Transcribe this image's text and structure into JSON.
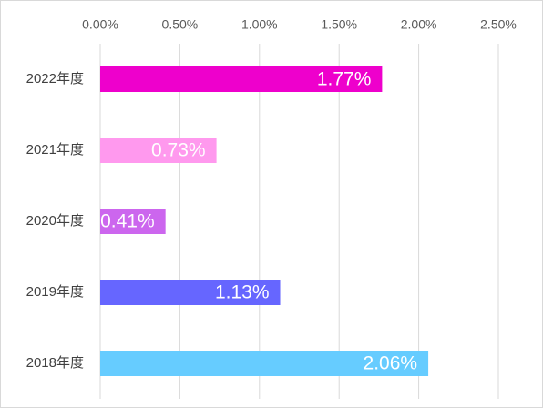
{
  "chart_data": {
    "type": "bar",
    "orientation": "horizontal",
    "categories": [
      "2022年度",
      "2021年度",
      "2020年度",
      "2019年度",
      "2018年度"
    ],
    "values": [
      1.77,
      0.73,
      0.41,
      1.13,
      2.06
    ],
    "value_labels": [
      "1.77%",
      "0.73%",
      "0.41%",
      "1.13%",
      "2.06%"
    ],
    "colors": [
      "#ee00cc",
      "#ff99ee",
      "#cc66ee",
      "#6666ff",
      "#66ccff"
    ],
    "xlim": [
      0,
      2.5
    ],
    "xticks": [
      {
        "value": 0,
        "label": "0.00%"
      },
      {
        "value": 0.5,
        "label": "0.50%"
      },
      {
        "value": 1,
        "label": "1.00%"
      },
      {
        "value": 1.5,
        "label": "1.50%"
      },
      {
        "value": 2,
        "label": "2.00%"
      },
      {
        "value": 2.5,
        "label": "2.50%"
      }
    ],
    "grid": true
  }
}
